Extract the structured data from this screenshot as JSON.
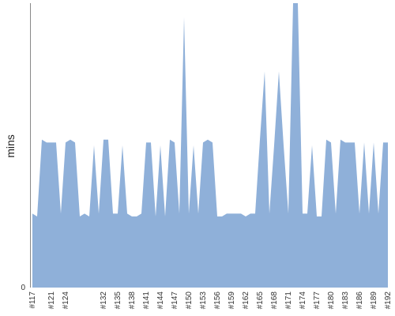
{
  "chart_data": {
    "type": "area",
    "title": "",
    "xlabel": "",
    "ylabel": "mins",
    "ylim": [
      0,
      100
    ],
    "y_ticks": [
      "0"
    ],
    "grid": false,
    "legend": "none",
    "color": "#8fb0d9",
    "x": [
      "#117",
      "#118",
      "#119",
      "#120",
      "#121",
      "#122",
      "#123",
      "#124",
      "#125",
      "#126",
      "#127",
      "#128",
      "#129",
      "#130",
      "#131",
      "#132",
      "#133",
      "#134",
      "#135",
      "#136",
      "#137",
      "#138",
      "#139",
      "#140",
      "#141",
      "#142",
      "#143",
      "#144",
      "#145",
      "#146",
      "#147",
      "#148",
      "#149",
      "#150",
      "#151",
      "#152",
      "#153",
      "#154",
      "#155",
      "#156",
      "#157",
      "#158",
      "#159",
      "#160",
      "#161",
      "#162",
      "#163",
      "#164",
      "#165",
      "#166",
      "#167",
      "#168",
      "#169",
      "#170",
      "#171",
      "#172",
      "#173",
      "#174",
      "#175",
      "#176",
      "#177",
      "#178",
      "#179",
      "#180",
      "#181",
      "#182",
      "#183",
      "#184",
      "#185",
      "#186",
      "#187",
      "#188",
      "#189",
      "#190",
      "#191",
      "#192"
    ],
    "tick_labels": [
      "#117",
      "#121",
      "#124",
      "#132",
      "#135",
      "#138",
      "#141",
      "#144",
      "#147",
      "#150",
      "#153",
      "#156",
      "#159",
      "#162",
      "#165",
      "#168",
      "#171",
      "#174",
      "#177",
      "#180",
      "#183",
      "#186",
      "#189",
      "#192"
    ],
    "series": [
      {
        "values": [
          26,
          25,
          52,
          51,
          51,
          51,
          26,
          51,
          52,
          51,
          25,
          26,
          25,
          50,
          26,
          52,
          52,
          26,
          26,
          50,
          26,
          25,
          25,
          26,
          51,
          51,
          25,
          50,
          25,
          52,
          51,
          26,
          95,
          26,
          50,
          26,
          51,
          52,
          51,
          25,
          25,
          26,
          26,
          26,
          26,
          25,
          26,
          26,
          52,
          76,
          26,
          50,
          76,
          50,
          26,
          100,
          100,
          26,
          26,
          50,
          25,
          25,
          52,
          51,
          26,
          52,
          51,
          51,
          51,
          26,
          51,
          26,
          51,
          26,
          51,
          51
        ]
      }
    ]
  }
}
